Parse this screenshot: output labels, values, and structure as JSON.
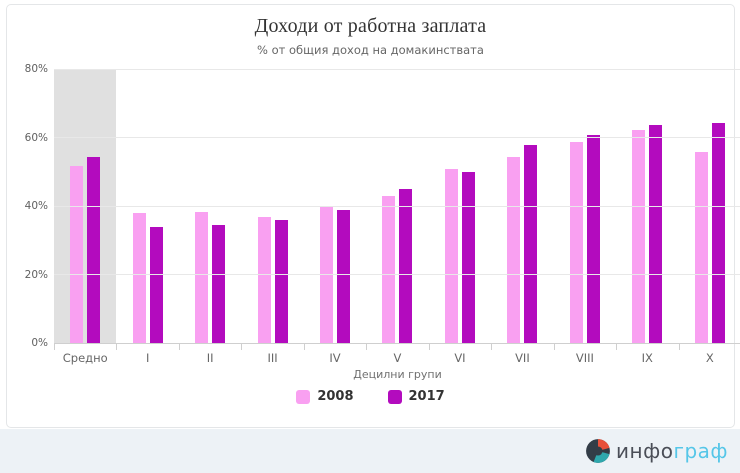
{
  "title": "Доходи от работна заплата",
  "subtitle": "% от общия доход на домакинствата",
  "chart_data": {
    "type": "bar",
    "categories": [
      "Средно",
      "I",
      "II",
      "III",
      "IV",
      "V",
      "VI",
      "VII",
      "VIII",
      "IX",
      "X"
    ],
    "series": [
      {
        "name": "2008",
        "color": "#f9a0f1",
        "values": [
          52,
          38,
          38.5,
          37,
          40,
          43,
          51,
          54.5,
          59,
          62.5,
          56
        ]
      },
      {
        "name": "2017",
        "color": "#b30bbe",
        "values": [
          54.5,
          34,
          34.5,
          36,
          39,
          45,
          50,
          58,
          61,
          64,
          64.5
        ]
      }
    ],
    "title": "Доходи от работна заплата",
    "subtitle": "% от общия доход на домакинствата",
    "xlabel": "Децилни групи",
    "ylabel": "",
    "ylim": [
      0,
      80
    ],
    "yticks": [
      0,
      20,
      40,
      60,
      80
    ],
    "ytick_suffix": "%",
    "grid": true,
    "legend_position": "bottom",
    "highlight_category": "Средно",
    "highlight_color": "#e0e0e0"
  },
  "legend": {
    "items": [
      {
        "label": "2008",
        "color": "#f9a0f1"
      },
      {
        "label": "2017",
        "color": "#b30bbe"
      }
    ]
  },
  "footer": {
    "logo_icon": "infograf-circle-icon",
    "logo_text_primary": "инфо",
    "logo_text_secondary": "граф"
  }
}
